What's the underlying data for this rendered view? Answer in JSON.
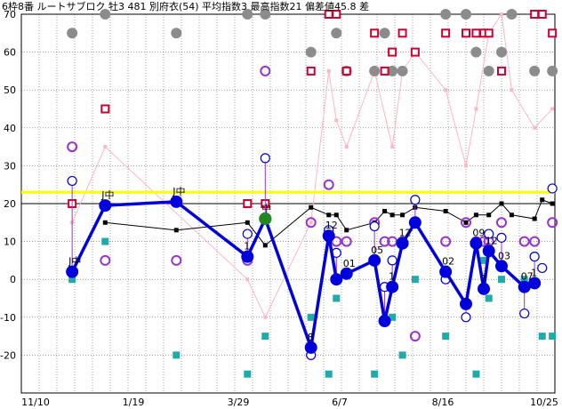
{
  "chart_data": {
    "type": "scatter",
    "title": "6枠8番 ルートサブロク 牡3 481 別府衣(54) 平均指数3 最高指数21 偏差値45.8 差",
    "x_tick_labels": [
      "11/10",
      "1/19",
      "3/29",
      "6/7",
      "8/16",
      "10/25"
    ],
    "ylim": [
      -30,
      70
    ],
    "y_ticks": [
      70,
      60,
      50,
      40,
      30,
      20,
      10,
      0,
      -10,
      -20
    ],
    "grid": true,
    "reference_line": {
      "y": 23,
      "color": "#ffff00"
    },
    "colors": {
      "main": "#0000dd",
      "black": "#000000",
      "pink": "#ffb6c1",
      "red_square": "#cc0033",
      "teal": "#22aaaa",
      "gray": "#8c8c8c",
      "purple": "#9933cc",
      "green": "#228822"
    },
    "main_series": [
      {
        "x": 20,
        "y": 2,
        "label": "J中"
      },
      {
        "x": 33,
        "y": 19.5,
        "label": "J中"
      },
      {
        "x": 61,
        "y": 20.5,
        "label": "J中"
      },
      {
        "x": 89,
        "y": 6,
        "label": "1"
      },
      {
        "x": 96,
        "y": 16,
        "label": "中"
      },
      {
        "x": 114,
        "y": -18,
        "label": "8"
      },
      {
        "x": 121,
        "y": 11.5,
        "label": "12"
      },
      {
        "x": 124,
        "y": 0,
        "label": ""
      },
      {
        "x": 128,
        "y": 1.5,
        "label": "01"
      },
      {
        "x": 139,
        "y": 5,
        "label": "05"
      },
      {
        "x": 143,
        "y": -11,
        "label": ""
      },
      {
        "x": 146,
        "y": -2,
        "label": "1"
      },
      {
        "x": 150,
        "y": 9.5,
        "label": "12"
      },
      {
        "x": 155,
        "y": 15,
        "label": ""
      },
      {
        "x": 167,
        "y": 2,
        "label": "02"
      },
      {
        "x": 175,
        "y": -6.5,
        "label": ""
      },
      {
        "x": 179,
        "y": 9.5,
        "label": "09"
      },
      {
        "x": 182,
        "y": -2.5,
        "label": "7"
      },
      {
        "x": 184,
        "y": 7.5,
        "label": "12"
      },
      {
        "x": 189,
        "y": 3.5,
        "label": "03"
      },
      {
        "x": 198,
        "y": -2,
        "label": "07"
      },
      {
        "x": 202,
        "y": -1,
        "label": "1"
      }
    ],
    "black_series": [
      {
        "x": 33,
        "y": 15
      },
      {
        "x": 61,
        "y": 13
      },
      {
        "x": 89,
        "y": 15
      },
      {
        "x": 96,
        "y": 9
      },
      {
        "x": 114,
        "y": 19
      },
      {
        "x": 121,
        "y": 17
      },
      {
        "x": 124,
        "y": 17
      },
      {
        "x": 128,
        "y": 13
      },
      {
        "x": 139,
        "y": 15
      },
      {
        "x": 143,
        "y": 18
      },
      {
        "x": 146,
        "y": 17
      },
      {
        "x": 150,
        "y": 17
      },
      {
        "x": 155,
        "y": 19
      },
      {
        "x": 167,
        "y": 18
      },
      {
        "x": 175,
        "y": 15
      },
      {
        "x": 179,
        "y": 17
      },
      {
        "x": 184,
        "y": 17
      },
      {
        "x": 189,
        "y": 20
      },
      {
        "x": 193,
        "y": 17
      },
      {
        "x": 202,
        "y": 16
      },
      {
        "x": 205,
        "y": 21
      },
      {
        "x": 209,
        "y": 20
      }
    ],
    "pink_series": [
      {
        "x": 20,
        "y": 15
      },
      {
        "x": 33,
        "y": 35
      },
      {
        "x": 89,
        "y": 0
      },
      {
        "x": 96,
        "y": -10
      },
      {
        "x": 114,
        "y": 15
      },
      {
        "x": 121,
        "y": 55
      },
      {
        "x": 124,
        "y": 42
      },
      {
        "x": 128,
        "y": 35
      },
      {
        "x": 139,
        "y": 55
      },
      {
        "x": 146,
        "y": 35
      },
      {
        "x": 150,
        "y": 55
      },
      {
        "x": 155,
        "y": 60
      },
      {
        "x": 167,
        "y": 50
      },
      {
        "x": 175,
        "y": 30
      },
      {
        "x": 179,
        "y": 45
      },
      {
        "x": 184,
        "y": 65
      },
      {
        "x": 189,
        "y": 70
      },
      {
        "x": 193,
        "y": 50
      },
      {
        "x": 202,
        "y": 40
      },
      {
        "x": 209,
        "y": 45
      }
    ],
    "red_squares": [
      {
        "x": 20,
        "y": 20
      },
      {
        "x": 33,
        "y": 45
      },
      {
        "x": 89,
        "y": 20
      },
      {
        "x": 96,
        "y": 20
      },
      {
        "x": 114,
        "y": 55
      },
      {
        "x": 121,
        "y": 70
      },
      {
        "x": 124,
        "y": 70
      },
      {
        "x": 128,
        "y": 55
      },
      {
        "x": 139,
        "y": 65
      },
      {
        "x": 143,
        "y": 55
      },
      {
        "x": 146,
        "y": 60
      },
      {
        "x": 150,
        "y": 65
      },
      {
        "x": 155,
        "y": 60
      },
      {
        "x": 167,
        "y": 65
      },
      {
        "x": 175,
        "y": 65
      },
      {
        "x": 179,
        "y": 65
      },
      {
        "x": 182,
        "y": 65
      },
      {
        "x": 184,
        "y": 65
      },
      {
        "x": 189,
        "y": 55
      },
      {
        "x": 202,
        "y": 70
      },
      {
        "x": 205,
        "y": 70
      },
      {
        "x": 209,
        "y": 65
      }
    ],
    "teal_squares": [
      {
        "x": 20,
        "y": 0
      },
      {
        "x": 33,
        "y": 10
      },
      {
        "x": 61,
        "y": -20
      },
      {
        "x": 89,
        "y": -25
      },
      {
        "x": 96,
        "y": -15
      },
      {
        "x": 114,
        "y": -10
      },
      {
        "x": 121,
        "y": -25
      },
      {
        "x": 124,
        "y": -5
      },
      {
        "x": 139,
        "y": -25
      },
      {
        "x": 146,
        "y": -10
      },
      {
        "x": 150,
        "y": -20
      },
      {
        "x": 155,
        "y": 0
      },
      {
        "x": 167,
        "y": -15
      },
      {
        "x": 179,
        "y": -25
      },
      {
        "x": 182,
        "y": 5
      },
      {
        "x": 184,
        "y": -5
      },
      {
        "x": 189,
        "y": 0
      },
      {
        "x": 198,
        "y": 0
      },
      {
        "x": 205,
        "y": -15
      },
      {
        "x": 209,
        "y": -15
      }
    ],
    "gray_circles": [
      {
        "x": 20,
        "y": 65
      },
      {
        "x": 33,
        "y": 70
      },
      {
        "x": 61,
        "y": 65
      },
      {
        "x": 89,
        "y": 70
      },
      {
        "x": 96,
        "y": 70
      },
      {
        "x": 114,
        "y": 60
      },
      {
        "x": 124,
        "y": 65
      },
      {
        "x": 128,
        "y": 55
      },
      {
        "x": 139,
        "y": 55
      },
      {
        "x": 143,
        "y": 65
      },
      {
        "x": 146,
        "y": 55
      },
      {
        "x": 150,
        "y": 55
      },
      {
        "x": 167,
        "y": 70
      },
      {
        "x": 175,
        "y": 70
      },
      {
        "x": 179,
        "y": 60
      },
      {
        "x": 184,
        "y": 55
      },
      {
        "x": 189,
        "y": 60
      },
      {
        "x": 193,
        "y": 70
      },
      {
        "x": 202,
        "y": 55
      },
      {
        "x": 209,
        "y": 55
      }
    ],
    "purple_rings": [
      {
        "x": 20,
        "y": 35
      },
      {
        "x": 33,
        "y": 5
      },
      {
        "x": 61,
        "y": 5
      },
      {
        "x": 89,
        "y": 5
      },
      {
        "x": 96,
        "y": 55
      },
      {
        "x": 114,
        "y": 15
      },
      {
        "x": 121,
        "y": 25
      },
      {
        "x": 124,
        "y": 10
      },
      {
        "x": 128,
        "y": 10
      },
      {
        "x": 139,
        "y": 15
      },
      {
        "x": 143,
        "y": 10
      },
      {
        "x": 146,
        "y": 10
      },
      {
        "x": 150,
        "y": 10
      },
      {
        "x": 155,
        "y": -15
      },
      {
        "x": 167,
        "y": 10
      },
      {
        "x": 175,
        "y": 15
      },
      {
        "x": 179,
        "y": 10
      },
      {
        "x": 182,
        "y": 10
      },
      {
        "x": 184,
        "y": 10
      },
      {
        "x": 189,
        "y": 15
      },
      {
        "x": 198,
        "y": 10
      },
      {
        "x": 202,
        "y": 10
      },
      {
        "x": 209,
        "y": 15
      }
    ],
    "blue_rings": [
      {
        "x": 20,
        "y": 26
      },
      {
        "x": 89,
        "y": 12
      },
      {
        "x": 96,
        "y": 32
      },
      {
        "x": 114,
        "y": -20
      },
      {
        "x": 121,
        "y": 13
      },
      {
        "x": 124,
        "y": 7
      },
      {
        "x": 139,
        "y": 14
      },
      {
        "x": 143,
        "y": -2
      },
      {
        "x": 146,
        "y": 5
      },
      {
        "x": 155,
        "y": 21
      },
      {
        "x": 167,
        "y": 0
      },
      {
        "x": 175,
        "y": -10
      },
      {
        "x": 184,
        "y": 12
      },
      {
        "x": 189,
        "y": 11
      },
      {
        "x": 198,
        "y": -9
      },
      {
        "x": 202,
        "y": 6
      },
      {
        "x": 205,
        "y": 3
      },
      {
        "x": 209,
        "y": 24
      }
    ],
    "green_marker": {
      "x": 96,
      "y": 16
    }
  }
}
